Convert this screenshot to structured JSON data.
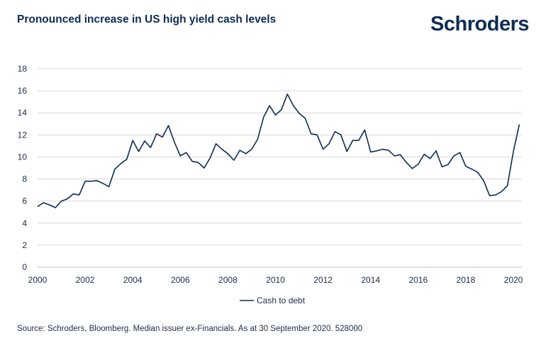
{
  "header": {
    "title": "Pronounced increase in US high yield cash levels",
    "logo": "Schroders"
  },
  "footer": {
    "source": "Source: Schroders, Bloomberg. Median issuer ex-Financials. As at 30 September 2020. 528000"
  },
  "colors": {
    "line": "#0d2c54",
    "grid": "#d9d9d9",
    "text": "#1c2c44"
  },
  "chart_data": {
    "type": "line",
    "title": "Pronounced increase in US high yield cash levels",
    "xlabel": "",
    "ylabel": "",
    "xlim": [
      2000,
      2020.3
    ],
    "ylim": [
      0,
      18
    ],
    "x_ticks": [
      2000,
      2002,
      2004,
      2006,
      2008,
      2010,
      2012,
      2014,
      2016,
      2018,
      2020
    ],
    "y_ticks": [
      0,
      2,
      4,
      6,
      8,
      10,
      12,
      14,
      16,
      18
    ],
    "grid": "horizontal",
    "legend_position": "bottom",
    "series": [
      {
        "name": "Cash to debt",
        "x": [
          2000.0,
          2000.25,
          2000.5,
          2000.75,
          2001.0,
          2001.25,
          2001.5,
          2001.75,
          2002.0,
          2002.25,
          2002.5,
          2002.75,
          2003.0,
          2003.25,
          2003.5,
          2003.75,
          2004.0,
          2004.25,
          2004.5,
          2004.75,
          2005.0,
          2005.25,
          2005.5,
          2005.75,
          2006.0,
          2006.25,
          2006.5,
          2006.75,
          2007.0,
          2007.25,
          2007.5,
          2007.75,
          2008.0,
          2008.25,
          2008.5,
          2008.75,
          2009.0,
          2009.25,
          2009.5,
          2009.75,
          2010.0,
          2010.25,
          2010.5,
          2010.75,
          2011.0,
          2011.25,
          2011.5,
          2011.75,
          2012.0,
          2012.25,
          2012.5,
          2012.75,
          2013.0,
          2013.25,
          2013.5,
          2013.75,
          2014.0,
          2014.25,
          2014.5,
          2014.75,
          2015.0,
          2015.25,
          2015.5,
          2015.75,
          2016.0,
          2016.25,
          2016.5,
          2016.75,
          2017.0,
          2017.25,
          2017.5,
          2017.75,
          2018.0,
          2018.25,
          2018.5,
          2018.75,
          2019.0,
          2019.25,
          2019.5,
          2019.75,
          2020.0,
          2020.25
        ],
        "y": [
          5.5,
          5.85,
          5.65,
          5.4,
          6.0,
          6.2,
          6.65,
          6.55,
          7.8,
          7.8,
          7.85,
          7.6,
          7.3,
          8.9,
          9.4,
          9.8,
          11.5,
          10.5,
          11.45,
          10.85,
          12.1,
          11.8,
          12.85,
          11.35,
          10.1,
          10.4,
          9.6,
          9.5,
          9.0,
          9.9,
          11.2,
          10.7,
          10.3,
          9.7,
          10.6,
          10.3,
          10.7,
          11.6,
          13.6,
          14.65,
          13.8,
          14.3,
          15.7,
          14.65,
          13.95,
          13.5,
          12.1,
          12.0,
          10.7,
          11.2,
          12.3,
          12.0,
          10.5,
          11.5,
          11.5,
          12.45,
          10.45,
          10.55,
          10.7,
          10.6,
          10.1,
          10.2,
          9.5,
          8.95,
          9.35,
          10.25,
          9.85,
          10.55,
          9.1,
          9.3,
          10.1,
          10.4,
          9.15,
          8.9,
          8.6,
          7.85,
          6.5,
          6.55,
          6.85,
          7.4,
          10.5,
          12.95
        ]
      }
    ]
  }
}
